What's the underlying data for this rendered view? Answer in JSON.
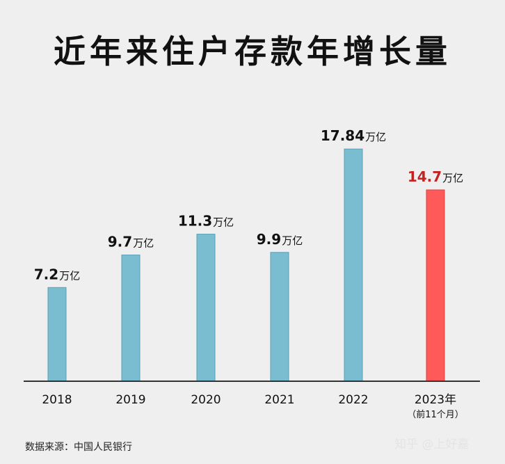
{
  "chart_data": {
    "type": "bar",
    "title": "近年来住户存款年增长量",
    "categories": [
      "2018",
      "2019",
      "2020",
      "2021",
      "2022",
      "2023年"
    ],
    "category_notes": [
      "",
      "",
      "",
      "",
      "",
      "（前11个月）"
    ],
    "values": [
      7.2,
      9.7,
      11.3,
      9.9,
      17.84,
      14.7
    ],
    "value_labels": [
      "7.2",
      "9.7",
      "11.3",
      "9.9",
      "17.84",
      "14.7"
    ],
    "unit": "万亿",
    "ylim": [
      0,
      18.6
    ],
    "grid": false,
    "colors": {
      "bar": "#7bbdd0",
      "bar_stroke": "#5aa0b6",
      "highlight_bar": "#ff5a5a",
      "highlight_stroke": "#d94040",
      "highlight_label": "#c42323",
      "label": "#111111",
      "axis": "#333333"
    },
    "highlight_index": 5
  },
  "source": "数据来源：中国人民银行",
  "watermark": "知乎 @上好嘉"
}
